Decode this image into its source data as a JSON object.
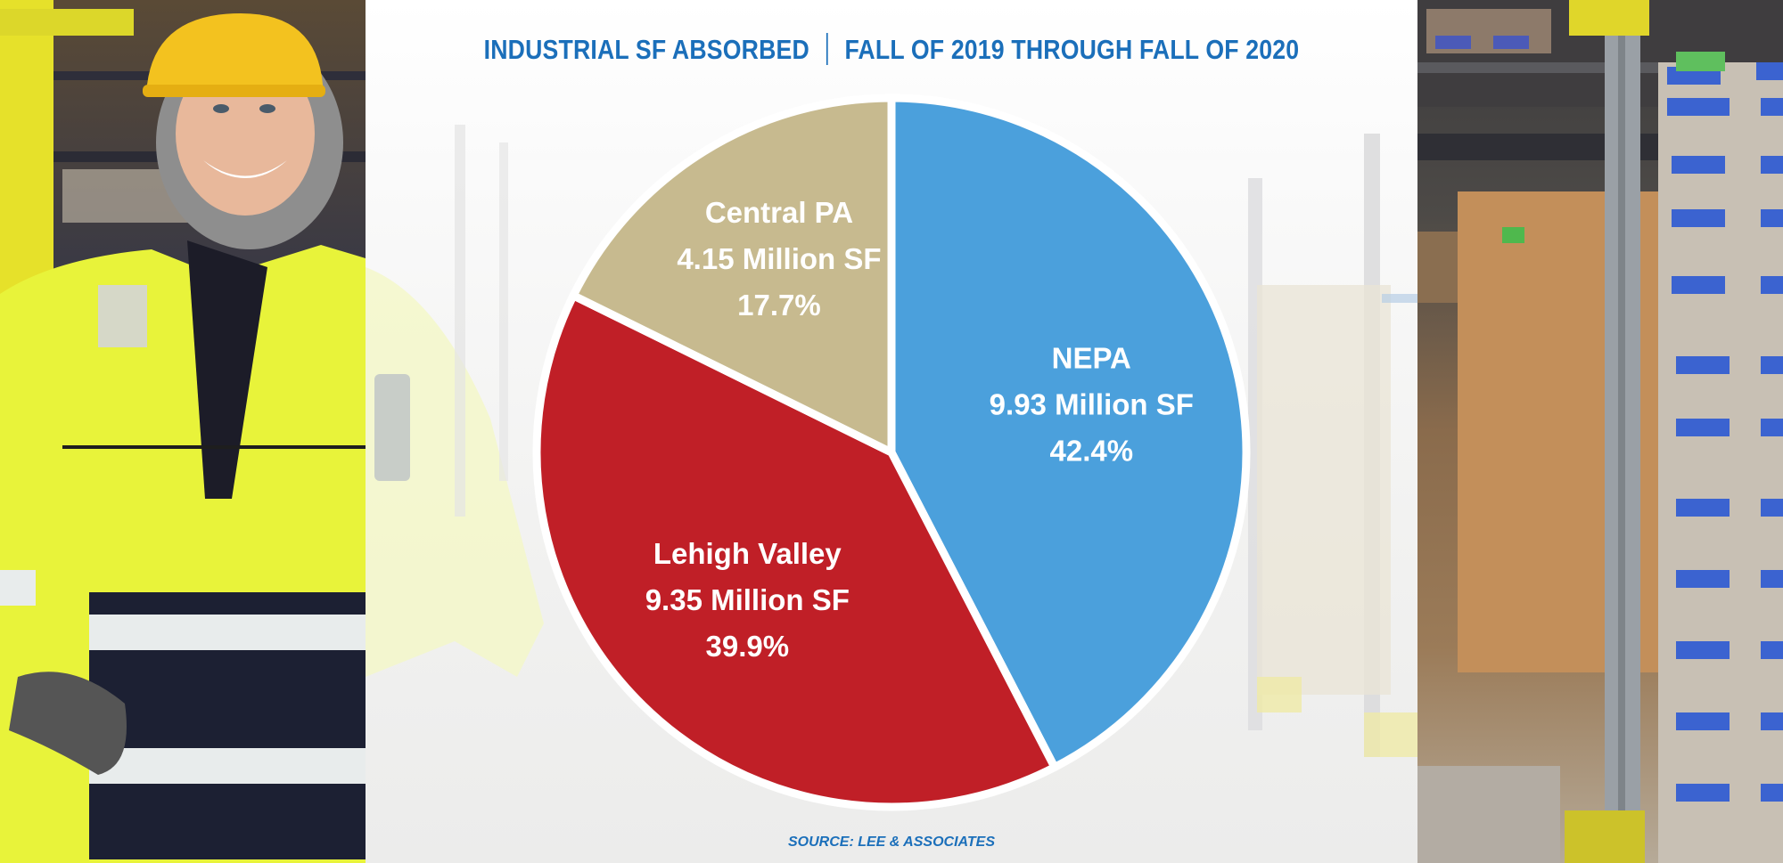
{
  "title": {
    "left": "INDUSTRIAL SF ABSORBED",
    "right": "FALL OF 2019 THROUGH FALL OF 2020"
  },
  "source": "SOURCE: LEE & ASSOCIATES",
  "colors": {
    "title": "#1b6fba",
    "nepa": "#4ba0dc",
    "lehigh": "#c01f27",
    "central": "#c7ba8f"
  },
  "chart_data": {
    "type": "pie",
    "title": "INDUSTRIAL SF ABSORBED | FALL OF 2019 THROUGH FALL OF 2020",
    "unit": "Million SF",
    "slices": [
      {
        "name": "NEPA",
        "value": 9.93,
        "value_label": "9.93 Million SF",
        "percent": 42.4,
        "percent_label": "42.4%",
        "color": "#4ba0dc"
      },
      {
        "name": "Lehigh Valley",
        "value": 9.35,
        "value_label": "9.35 Million SF",
        "percent": 39.9,
        "percent_label": "39.9%",
        "color": "#c01f27"
      },
      {
        "name": "Central PA",
        "value": 4.15,
        "value_label": "4.15 Million SF",
        "percent": 17.7,
        "percent_label": "17.7%",
        "color": "#c7ba8f"
      }
    ],
    "start_angle": "12 o'clock",
    "direction": "clockwise",
    "legend": "none"
  }
}
